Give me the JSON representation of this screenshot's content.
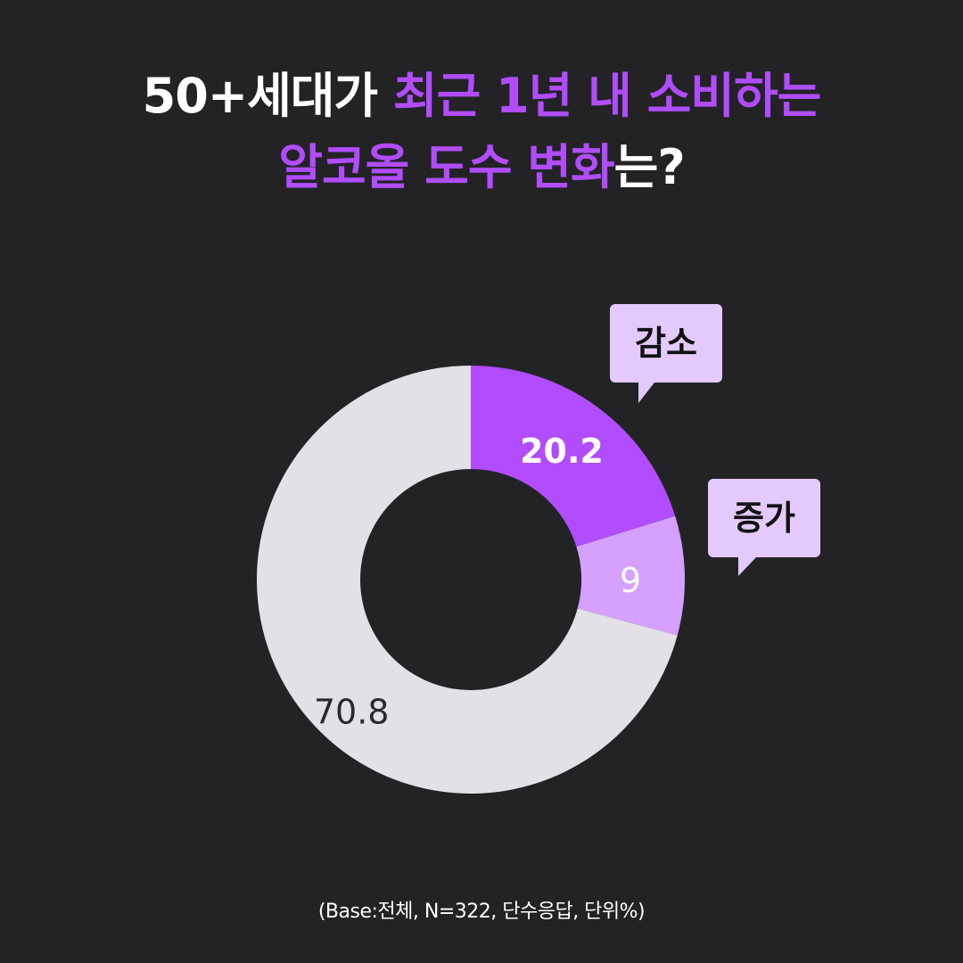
{
  "title": {
    "line1_white": "50+세대가 ",
    "line1_purple": "최근 1년 내 소비하는",
    "line2_purple": "알코올 도수 변화",
    "line2_white": "는?"
  },
  "chart_data": {
    "type": "pie",
    "donut": true,
    "start_angle_deg": 0,
    "direction": "clockwise",
    "slices": [
      {
        "label": "감소",
        "value": 20.2,
        "display": "20.2",
        "color": "#b14cff",
        "label_color": "#ffffff",
        "callout": "감소"
      },
      {
        "label": "증가",
        "value": 9,
        "display": "9",
        "color": "#d6a0ff",
        "label_color": "#ffffff",
        "callout": "증가"
      },
      {
        "label": "",
        "value": 70.8,
        "display": "70.8",
        "color": "#e3e0e8",
        "label_color": "#2a2a2a",
        "callout": ""
      }
    ],
    "callout_bg": "#e4c9ff",
    "callout_text_color": "#111111"
  },
  "footnote": "(Base:전체, N=322, 단수응답, 단위%)"
}
